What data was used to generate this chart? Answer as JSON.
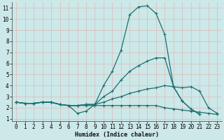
{
  "xlabel": "Humidex (Indice chaleur)",
  "xlim": [
    -0.5,
    23.5
  ],
  "ylim": [
    0.8,
    11.5
  ],
  "xticks": [
    0,
    1,
    2,
    3,
    4,
    5,
    6,
    7,
    8,
    9,
    10,
    11,
    12,
    13,
    14,
    15,
    16,
    17,
    18,
    19,
    20,
    21,
    22,
    23
  ],
  "yticks": [
    1,
    2,
    3,
    4,
    5,
    6,
    7,
    8,
    9,
    10,
    11
  ],
  "bg_color": "#cce8e8",
  "plot_bg_color": "#cce8e8",
  "line_color": "#1a7070",
  "grid_color_v": "#e8c8c8",
  "grid_color_h": "#e0d0d0",
  "lines": [
    {
      "x": [
        0,
        1,
        2,
        3,
        4,
        5,
        6,
        7,
        8,
        9,
        10,
        11,
        12,
        13,
        14,
        15,
        16,
        17,
        18,
        19,
        20,
        21
      ],
      "y": [
        2.5,
        2.4,
        2.4,
        2.5,
        2.5,
        2.3,
        2.2,
        1.5,
        1.7,
        2.3,
        4.0,
        5.3,
        7.2,
        10.4,
        11.1,
        11.2,
        10.5,
        8.6,
        3.9,
        2.6,
        1.9,
        1.4
      ]
    },
    {
      "x": [
        0,
        1,
        2,
        3,
        4,
        5,
        6,
        7,
        8,
        9,
        10,
        11,
        12,
        13,
        14,
        15,
        16,
        17,
        18,
        19,
        20,
        21
      ],
      "y": [
        2.5,
        2.4,
        2.4,
        2.5,
        2.5,
        2.3,
        2.2,
        2.2,
        2.3,
        2.3,
        3.0,
        3.5,
        4.5,
        5.3,
        5.8,
        6.2,
        6.5,
        6.5,
        3.9,
        2.6,
        1.9,
        1.4
      ]
    },
    {
      "x": [
        0,
        1,
        2,
        3,
        4,
        5,
        6,
        7,
        8,
        9,
        10,
        11,
        12,
        13,
        14,
        15,
        16,
        17,
        18,
        19,
        20,
        21,
        22,
        23
      ],
      "y": [
        2.5,
        2.4,
        2.4,
        2.5,
        2.5,
        2.3,
        2.2,
        2.2,
        2.3,
        2.3,
        2.5,
        2.8,
        3.0,
        3.3,
        3.5,
        3.7,
        3.8,
        4.0,
        3.9,
        3.8,
        3.9,
        3.5,
        2.0,
        1.5
      ]
    },
    {
      "x": [
        0,
        1,
        2,
        3,
        4,
        5,
        6,
        7,
        8,
        9,
        10,
        11,
        12,
        13,
        14,
        15,
        16,
        17,
        18,
        19,
        20,
        21,
        22,
        23
      ],
      "y": [
        2.5,
        2.4,
        2.4,
        2.5,
        2.5,
        2.3,
        2.2,
        2.2,
        2.2,
        2.2,
        2.2,
        2.2,
        2.2,
        2.2,
        2.2,
        2.2,
        2.2,
        2.0,
        1.9,
        1.8,
        1.7,
        1.6,
        1.5,
        1.4
      ]
    }
  ]
}
